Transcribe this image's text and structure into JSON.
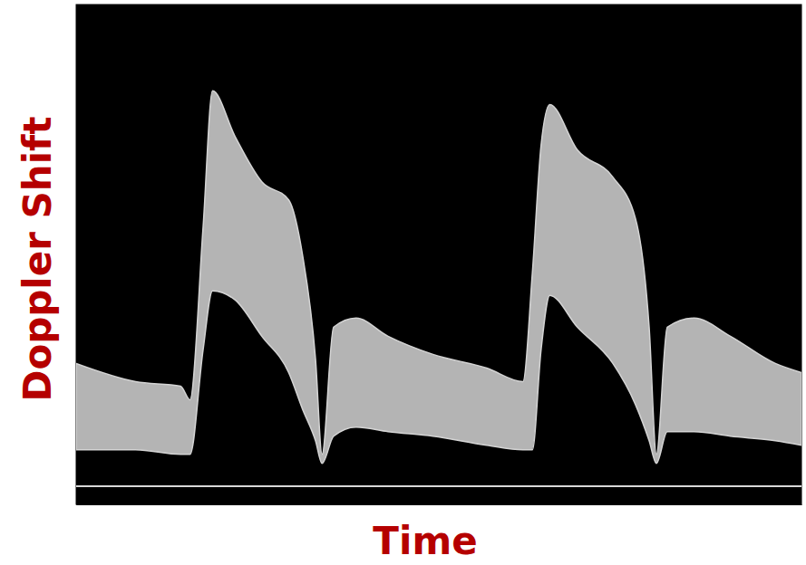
{
  "chart_data": {
    "type": "area",
    "x_label": "Time",
    "y_label": "Doppler Shift",
    "x": [
      0,
      8.2,
      14.4,
      15.7,
      17.5,
      18.8,
      21.9,
      25.6,
      29.3,
      31.2,
      33.0,
      33.9,
      35.5,
      38.6,
      43.0,
      49.2,
      56.6,
      61.6,
      62.9,
      64.1,
      65.3,
      69.1,
      74.0,
      77.1,
      79.0,
      80.0,
      81.5,
      85.2,
      90.2,
      96.4,
      100
    ],
    "series": [
      {
        "color": "#d4d4d4",
        "values": [
          27,
          23,
          22,
          19,
          57,
          87,
          77,
          67,
          63,
          51,
          28,
          7,
          35,
          37,
          33,
          29,
          26,
          23,
          47,
          75,
          84,
          74,
          68,
          59,
          35,
          7,
          35,
          37,
          33,
          27,
          25
        ],
        "lower": [
          8,
          8,
          7,
          7,
          30,
          43,
          41,
          33,
          25,
          17,
          10,
          5,
          11,
          13,
          12,
          11,
          9,
          8,
          8,
          30,
          42,
          35,
          27,
          18,
          10,
          5,
          12,
          12,
          11,
          10,
          9
        ]
      }
    ],
    "xlim": [
      0,
      100
    ],
    "ylim": [
      -4,
      106
    ],
    "xticks": [],
    "yticks": [
      0
    ],
    "tick_labels": false
  }
}
